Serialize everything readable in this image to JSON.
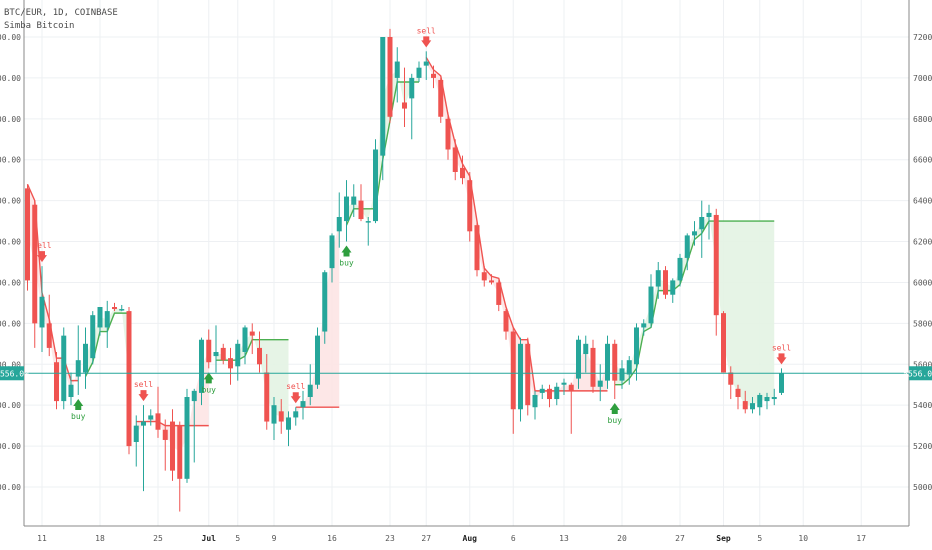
{
  "header": {
    "symbol_line": "BTC/EUR, 1D, COINBASE",
    "indicator_name": "Simba Bitcoin"
  },
  "colors": {
    "bull": "#26a69a",
    "bear": "#ef5350",
    "band_red_fill": "#fde4e4",
    "band_green_fill": "#e3f3e3",
    "band_red_line": "#ef5350",
    "band_green_line": "#4caf50",
    "price_line": "#26a69a",
    "grid": "#eef0f3",
    "axis_text": "#555555"
  },
  "chart_data": {
    "type": "candlestick",
    "symbol": "BTC/EUR",
    "timeframe": "1D",
    "exchange": "COINBASE",
    "indicator": "Simba Bitcoin",
    "x_tick_labels": [
      "11",
      "18",
      "25",
      "Jul",
      "5",
      "9",
      "16",
      "23",
      "27",
      "Aug",
      "6",
      "13",
      "20",
      "27",
      "Sep",
      "5",
      "10",
      "17"
    ],
    "y_tick_labels": [
      "5000.00",
      "5200.00",
      "5400.00",
      "5600.00",
      "5800.00",
      "6000.00",
      "6200.00",
      "6400.00",
      "6600.00",
      "6800.00",
      "7000.00",
      "7200.00"
    ],
    "ylim": [
      4800,
      7300
    ],
    "last_price": "5556.00",
    "candles": [
      [
        6460,
        6480,
        5960,
        6010
      ],
      [
        6380,
        6400,
        5680,
        5800
      ],
      [
        5780,
        6080,
        5660,
        5930
      ],
      [
        5800,
        5940,
        5640,
        5680
      ],
      [
        5610,
        5660,
        5380,
        5420
      ],
      [
        5420,
        5780,
        5380,
        5740
      ],
      [
        5440,
        5560,
        5400,
        5500
      ],
      [
        5540,
        5790,
        5450,
        5620
      ],
      [
        5560,
        5780,
        5480,
        5700
      ],
      [
        5630,
        5860,
        5600,
        5840
      ],
      [
        5780,
        5880,
        5740,
        5880
      ],
      [
        5780,
        5910,
        5680,
        5860
      ],
      [
        5880,
        5900,
        5860,
        5870
      ],
      [
        5870,
        5890,
        5860,
        5870
      ],
      [
        5860,
        5880,
        5160,
        5200
      ],
      [
        5220,
        5350,
        5100,
        5300
      ],
      [
        5300,
        5400,
        4980,
        5320
      ],
      [
        5330,
        5380,
        5300,
        5350
      ],
      [
        5360,
        5490,
        5240,
        5280
      ],
      [
        5280,
        5330,
        5080,
        5230
      ],
      [
        5320,
        5380,
        5030,
        5080
      ],
      [
        5300,
        5320,
        4880,
        5040
      ],
      [
        5040,
        5480,
        5020,
        5440
      ],
      [
        5420,
        5480,
        5120,
        5470
      ],
      [
        5460,
        5730,
        5400,
        5720
      ],
      [
        5720,
        5770,
        5580,
        5610
      ],
      [
        5640,
        5790,
        5560,
        5660
      ],
      [
        5680,
        5700,
        5600,
        5620
      ],
      [
        5630,
        5680,
        5500,
        5580
      ],
      [
        5590,
        5720,
        5520,
        5700
      ],
      [
        5660,
        5790,
        5600,
        5780
      ],
      [
        5760,
        5800,
        5650,
        5740
      ],
      [
        5680,
        5760,
        5560,
        5600
      ],
      [
        5560,
        5650,
        5280,
        5320
      ],
      [
        5310,
        5440,
        5230,
        5400
      ],
      [
        5370,
        5430,
        5260,
        5320
      ],
      [
        5280,
        5370,
        5200,
        5340
      ],
      [
        5340,
        5390,
        5300,
        5370
      ],
      [
        5390,
        5470,
        5330,
        5420
      ],
      [
        5440,
        5600,
        5400,
        5500
      ],
      [
        5500,
        5780,
        5480,
        5740
      ],
      [
        5760,
        6060,
        5700,
        6050
      ],
      [
        6070,
        6240,
        6000,
        6230
      ],
      [
        6250,
        6440,
        6170,
        6320
      ],
      [
        6300,
        6500,
        6200,
        6420
      ],
      [
        6380,
        6480,
        6320,
        6420
      ],
      [
        6400,
        6480,
        6300,
        6310
      ],
      [
        6300,
        6320,
        6180,
        6300
      ],
      [
        6300,
        6700,
        6290,
        6650
      ],
      [
        6620,
        7200,
        6500,
        7200
      ],
      [
        7200,
        7240,
        6780,
        6810
      ],
      [
        7000,
        7150,
        6880,
        7080
      ],
      [
        6880,
        7050,
        6760,
        6850
      ],
      [
        6900,
        7020,
        6700,
        7000
      ],
      [
        7000,
        7080,
        6980,
        7050
      ],
      [
        7060,
        7130,
        6990,
        7080
      ],
      [
        7020,
        7060,
        6950,
        7000
      ],
      [
        6990,
        7000,
        6780,
        6810
      ],
      [
        6800,
        6830,
        6600,
        6650
      ],
      [
        6660,
        6700,
        6500,
        6540
      ],
      [
        6560,
        6620,
        6480,
        6510
      ],
      [
        6500,
        6540,
        6200,
        6250
      ],
      [
        6280,
        6300,
        6030,
        6060
      ],
      [
        6050,
        6080,
        5980,
        6010
      ],
      [
        6010,
        6040,
        5990,
        6000
      ],
      [
        6000,
        6010,
        5860,
        5890
      ],
      [
        5860,
        5870,
        5720,
        5760
      ],
      [
        5760,
        5780,
        5260,
        5380
      ],
      [
        5380,
        5730,
        5320,
        5700
      ],
      [
        5700,
        5730,
        5350,
        5400
      ],
      [
        5390,
        5470,
        5330,
        5450
      ],
      [
        5460,
        5500,
        5430,
        5480
      ],
      [
        5480,
        5500,
        5390,
        5430
      ],
      [
        5430,
        5510,
        5400,
        5490
      ],
      [
        5500,
        5530,
        5450,
        5510
      ],
      [
        5500,
        5510,
        5260,
        5470
      ],
      [
        5530,
        5740,
        5480,
        5720
      ],
      [
        5650,
        5740,
        5560,
        5700
      ],
      [
        5680,
        5720,
        5460,
        5490
      ],
      [
        5490,
        5600,
        5420,
        5520
      ],
      [
        5520,
        5740,
        5480,
        5700
      ],
      [
        5700,
        5720,
        5430,
        5520
      ],
      [
        5520,
        5620,
        5480,
        5580
      ],
      [
        5550,
        5640,
        5500,
        5620
      ],
      [
        5600,
        5800,
        5520,
        5780
      ],
      [
        5780,
        5820,
        5740,
        5800
      ],
      [
        5800,
        6040,
        5780,
        5980
      ],
      [
        5980,
        6100,
        5920,
        6060
      ],
      [
        6060,
        6080,
        5920,
        5940
      ],
      [
        5940,
        6020,
        5900,
        6010
      ],
      [
        6010,
        6140,
        5980,
        6120
      ],
      [
        6120,
        6240,
        6060,
        6230
      ],
      [
        6230,
        6300,
        6180,
        6250
      ],
      [
        6260,
        6400,
        6120,
        6320
      ],
      [
        6320,
        6380,
        6210,
        6340
      ],
      [
        6330,
        6360,
        5740,
        5840
      ],
      [
        5850,
        5860,
        5560,
        5560
      ],
      [
        5560,
        5590,
        5430,
        5500
      ],
      [
        5480,
        5500,
        5380,
        5440
      ],
      [
        5420,
        5470,
        5360,
        5380
      ],
      [
        5380,
        5440,
        5360,
        5410
      ],
      [
        5390,
        5460,
        5350,
        5450
      ],
      [
        5420,
        5460,
        5380,
        5440
      ],
      [
        5430,
        5480,
        5400,
        5440
      ],
      [
        5460,
        5580,
        5450,
        5556
      ]
    ],
    "signals": [
      {
        "type": "sell",
        "label": "sell"
      },
      {
        "type": "buy",
        "label": "buy"
      },
      {
        "type": "sell",
        "label": "sell"
      },
      {
        "type": "buy",
        "label": "buy"
      },
      {
        "type": "sell",
        "label": "sell"
      },
      {
        "type": "buy",
        "label": "buy"
      },
      {
        "type": "sell",
        "label": "sell"
      },
      {
        "type": "buy",
        "label": "buy"
      },
      {
        "type": "sell",
        "label": "sell"
      }
    ]
  }
}
